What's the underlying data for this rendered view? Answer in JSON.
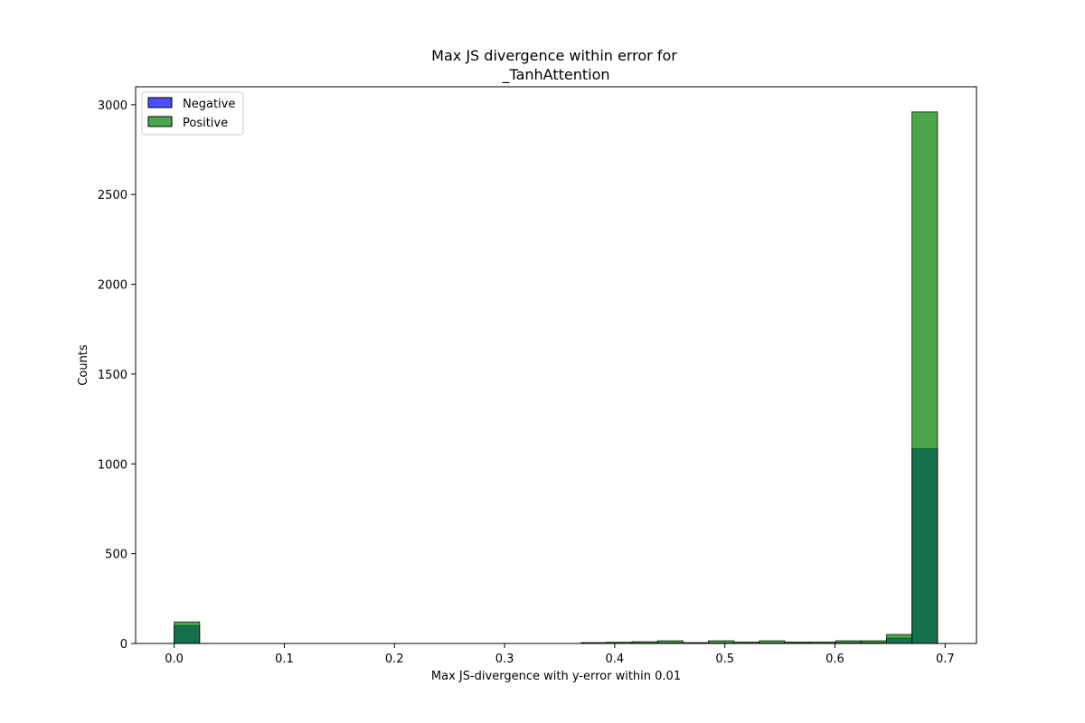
{
  "chart_data": {
    "type": "bar",
    "title_lines": [
      "Max JS divergence within error for",
      "_TanhAttention"
    ],
    "xlabel": "Max JS-divergence with y-error within 0.01",
    "ylabel": "Counts",
    "xlim": [
      -0.035,
      0.7285
    ],
    "ylim": [
      0,
      3100
    ],
    "xticks": [
      0.0,
      0.1,
      0.2,
      0.3,
      0.4,
      0.5,
      0.6,
      0.7
    ],
    "xtick_labels": [
      "0.0",
      "0.1",
      "0.2",
      "0.3",
      "0.4",
      "0.5",
      "0.6",
      "0.7"
    ],
    "yticks": [
      0,
      500,
      1000,
      1500,
      2000,
      2500,
      3000
    ],
    "ytick_labels": [
      "0",
      "500",
      "1000",
      "1500",
      "2000",
      "2500",
      "3000"
    ],
    "legend_position": "top-left",
    "grid": false,
    "bin_edges": [
      0.0,
      0.0231,
      0.0462,
      0.0693,
      0.0924,
      0.1155,
      0.1386,
      0.1617,
      0.1848,
      0.2079,
      0.231,
      0.2541,
      0.2772,
      0.3003,
      0.3234,
      0.3465,
      0.3696,
      0.3927,
      0.4158,
      0.4389,
      0.462,
      0.4851,
      0.5082,
      0.5313,
      0.5544,
      0.5775,
      0.6006,
      0.6237,
      0.6468,
      0.6699,
      0.6931
    ],
    "series": [
      {
        "name": "Negative",
        "color": "#0000ff",
        "alpha": 0.7,
        "values": [
          100,
          0,
          0,
          0,
          0,
          0,
          0,
          0,
          0,
          0,
          0,
          0,
          0,
          0,
          0,
          0,
          2,
          2,
          3,
          4,
          2,
          3,
          2,
          3,
          3,
          2,
          5,
          5,
          30,
          1085
        ]
      },
      {
        "name": "Positive",
        "color": "#008000",
        "alpha": 0.7,
        "values": [
          120,
          0,
          0,
          0,
          0,
          0,
          0,
          0,
          0,
          0,
          0,
          0,
          0,
          0,
          0,
          0,
          5,
          7,
          10,
          15,
          5,
          15,
          8,
          15,
          8,
          8,
          15,
          15,
          50,
          2960
        ]
      }
    ]
  }
}
